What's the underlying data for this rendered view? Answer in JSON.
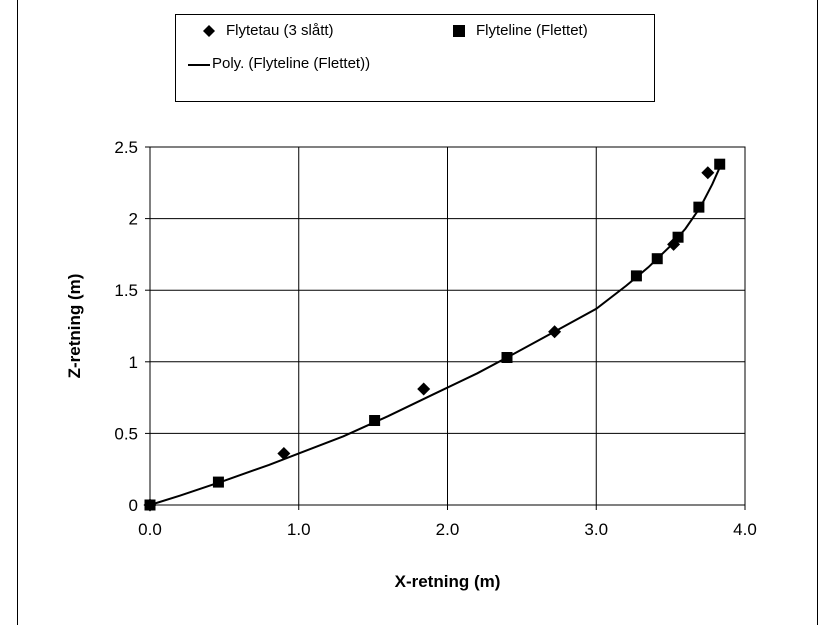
{
  "chart_data": {
    "type": "scatter",
    "xlabel": "X-retning (m)",
    "ylabel": "Z-retning (m)",
    "xlim": [
      0.0,
      4.0
    ],
    "ylim": [
      0,
      2.5
    ],
    "x_ticks": [
      "0.0",
      "1.0",
      "2.0",
      "3.0",
      "4.0"
    ],
    "y_ticks": [
      "0",
      "0.5",
      "1",
      "1.5",
      "2",
      "2.5"
    ],
    "grid": true,
    "legend_position": "top",
    "series": [
      {
        "name": "Flytetau (3 slått)",
        "marker": "diamond",
        "color": "#000000",
        "points": [
          [
            0.0,
            0.0
          ],
          [
            0.9,
            0.36
          ],
          [
            1.84,
            0.81
          ],
          [
            2.72,
            1.21
          ],
          [
            3.52,
            1.82
          ],
          [
            3.75,
            2.32
          ]
        ]
      },
      {
        "name": "Flyteline (Flettet)",
        "marker": "square",
        "color": "#000000",
        "points": [
          [
            0.0,
            0.0
          ],
          [
            0.46,
            0.16
          ],
          [
            1.51,
            0.59
          ],
          [
            2.4,
            1.03
          ],
          [
            3.27,
            1.6
          ],
          [
            3.41,
            1.72
          ],
          [
            3.55,
            1.87
          ],
          [
            3.69,
            2.08
          ],
          [
            3.83,
            2.38
          ]
        ]
      },
      {
        "name": "Poly. (Flyteline (Flettet))",
        "marker": "line",
        "color": "#000000",
        "points": [
          [
            0.0,
            0.0
          ],
          [
            0.2,
            0.065
          ],
          [
            0.5,
            0.17
          ],
          [
            0.8,
            0.28
          ],
          [
            1.0,
            0.36
          ],
          [
            1.3,
            0.48
          ],
          [
            1.6,
            0.62
          ],
          [
            1.9,
            0.77
          ],
          [
            2.2,
            0.92
          ],
          [
            2.4,
            1.03
          ],
          [
            2.7,
            1.2
          ],
          [
            3.0,
            1.37
          ],
          [
            3.2,
            1.53
          ],
          [
            3.35,
            1.66
          ],
          [
            3.5,
            1.81
          ],
          [
            3.6,
            1.93
          ],
          [
            3.7,
            2.08
          ],
          [
            3.78,
            2.24
          ],
          [
            3.84,
            2.38
          ]
        ]
      }
    ]
  }
}
